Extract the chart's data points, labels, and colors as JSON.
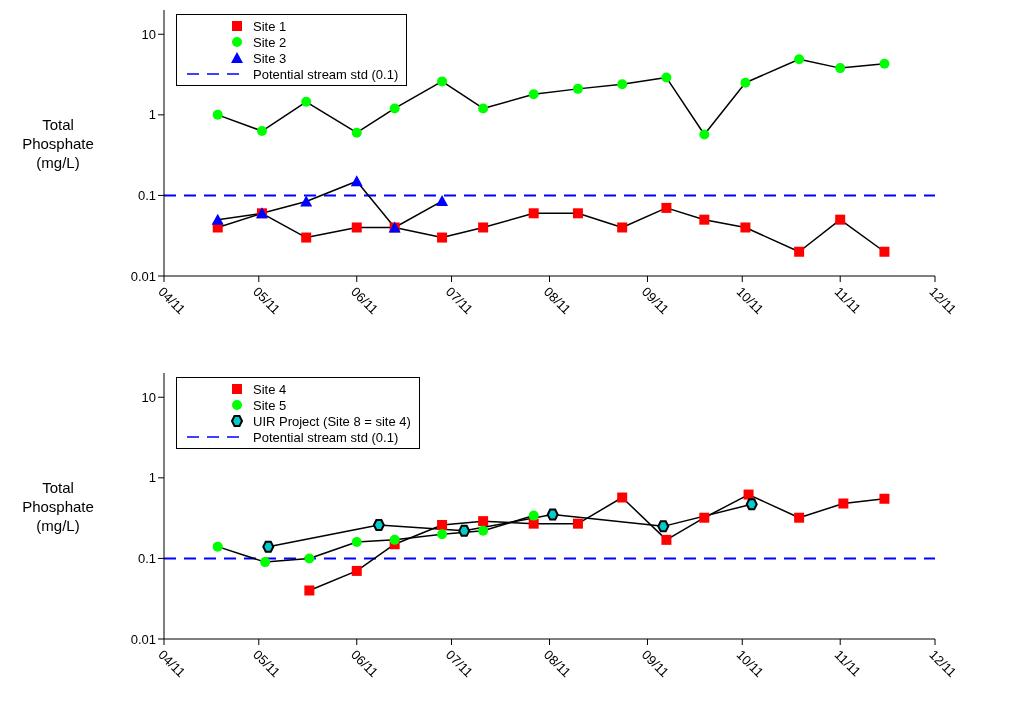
{
  "chart_data": [
    {
      "type": "line",
      "ylabel": "Total Phosphate (mg/L)",
      "log": true,
      "ylim": [
        0.01,
        20
      ],
      "yticks": [
        0.01,
        0.1,
        1,
        10
      ],
      "xlim": [
        "2011-04",
        "2011-12"
      ],
      "xticks": [
        {
          "value": "2011-04",
          "label": "04/11"
        },
        {
          "value": "2011-05",
          "label": "05/11"
        },
        {
          "value": "2011-06",
          "label": "06/11"
        },
        {
          "value": "2011-07",
          "label": "07/11"
        },
        {
          "value": "2011-08",
          "label": "08/11"
        },
        {
          "value": "2011-09",
          "label": "09/11"
        },
        {
          "value": "2011-10",
          "label": "10/11"
        },
        {
          "value": "2011-11",
          "label": "11/11"
        },
        {
          "value": "2011-12",
          "label": "12/11"
        }
      ],
      "grid": false,
      "legend": "top left",
      "line_style": "solid",
      "ref_lines": [
        {
          "axis": "y",
          "value": 0.1,
          "label": "Potential stream std (0.1)",
          "color": "#0000ff",
          "line_style": "dashed"
        }
      ],
      "series": [
        {
          "name": "Site 1",
          "color": "#ff0000",
          "marker": "square",
          "x": [
            "2011-04-18",
            "2011-05-02",
            "2011-05-16",
            "2011-06-01",
            "2011-06-13",
            "2011-06-28",
            "2011-07-11",
            "2011-07-27",
            "2011-08-10",
            "2011-08-24",
            "2011-09-07",
            "2011-09-19",
            "2011-10-02",
            "2011-10-19",
            "2011-11-01",
            "2011-11-15"
          ],
          "values": [
            0.04,
            0.06,
            0.03,
            0.04,
            0.04,
            0.03,
            0.04,
            0.06,
            0.06,
            0.04,
            0.07,
            0.05,
            0.04,
            0.02,
            0.05,
            0.02
          ]
        },
        {
          "name": "Site 2",
          "color": "#00ff00",
          "marker": "circle",
          "x": [
            "2011-04-18",
            "2011-05-02",
            "2011-05-16",
            "2011-06-01",
            "2011-06-13",
            "2011-06-28",
            "2011-07-11",
            "2011-07-27",
            "2011-08-10",
            "2011-08-24",
            "2011-09-07",
            "2011-09-19",
            "2011-10-02",
            "2011-10-19",
            "2011-11-01",
            "2011-11-15"
          ],
          "values": [
            1.0,
            0.63,
            1.45,
            0.6,
            1.2,
            2.6,
            1.2,
            1.8,
            2.1,
            2.4,
            2.9,
            0.57,
            2.5,
            4.9,
            3.8,
            4.3
          ]
        },
        {
          "name": "Site 3",
          "color": "#0000ff",
          "marker": "triangle",
          "x": [
            "2011-04-18",
            "2011-05-02",
            "2011-05-16",
            "2011-06-01",
            "2011-06-13",
            "2011-06-28"
          ],
          "values": [
            0.05,
            0.06,
            0.084,
            0.15,
            0.04,
            0.085
          ]
        }
      ]
    },
    {
      "type": "line",
      "ylabel": "Total Phosphate (mg/L)",
      "log": true,
      "ylim": [
        0.01,
        20
      ],
      "yticks": [
        0.01,
        0.1,
        1,
        10
      ],
      "xlim": [
        "2011-04",
        "2011-12"
      ],
      "xticks": [
        {
          "value": "2011-04",
          "label": "04/11"
        },
        {
          "value": "2011-05",
          "label": "05/11"
        },
        {
          "value": "2011-06",
          "label": "06/11"
        },
        {
          "value": "2011-07",
          "label": "07/11"
        },
        {
          "value": "2011-08",
          "label": "08/11"
        },
        {
          "value": "2011-09",
          "label": "09/11"
        },
        {
          "value": "2011-10",
          "label": "10/11"
        },
        {
          "value": "2011-11",
          "label": "11/11"
        },
        {
          "value": "2011-12",
          "label": "12/11"
        }
      ],
      "grid": false,
      "legend": "top left",
      "line_style": "solid",
      "ref_lines": [
        {
          "axis": "y",
          "value": 0.1,
          "label": "Potential stream std (0.1)",
          "color": "#0000ff",
          "line_style": "dashed"
        }
      ],
      "series": [
        {
          "name": "Site 4",
          "color": "#ff0000",
          "marker": "square",
          "x": [
            "2011-05-17",
            "2011-06-01",
            "2011-06-13",
            "2011-06-28",
            "2011-07-11",
            "2011-07-27",
            "2011-08-10",
            "2011-08-24",
            "2011-09-07",
            "2011-09-19",
            "2011-10-03",
            "2011-10-19",
            "2011-11-02",
            "2011-11-15"
          ],
          "values": [
            0.04,
            0.07,
            0.15,
            0.26,
            0.29,
            0.27,
            0.27,
            0.57,
            0.17,
            0.32,
            0.62,
            0.32,
            0.48,
            0.55
          ]
        },
        {
          "name": "Site 5",
          "color": "#00ff00",
          "marker": "circle",
          "x": [
            "2011-04-18",
            "2011-05-03",
            "2011-05-17",
            "2011-06-01",
            "2011-06-13",
            "2011-06-28",
            "2011-07-11",
            "2011-07-27"
          ],
          "values": [
            0.14,
            0.09,
            0.1,
            0.16,
            0.17,
            0.2,
            0.22,
            0.34
          ]
        },
        {
          "name": "UIR Project (Site 8 = site 4)",
          "color": "#00cccc",
          "marker": "diamond",
          "x": [
            "2011-05-04",
            "2011-06-08",
            "2011-07-05",
            "2011-08-02",
            "2011-09-06",
            "2011-10-04"
          ],
          "values": [
            0.14,
            0.26,
            0.22,
            0.35,
            0.25,
            0.47
          ]
        }
      ]
    }
  ]
}
